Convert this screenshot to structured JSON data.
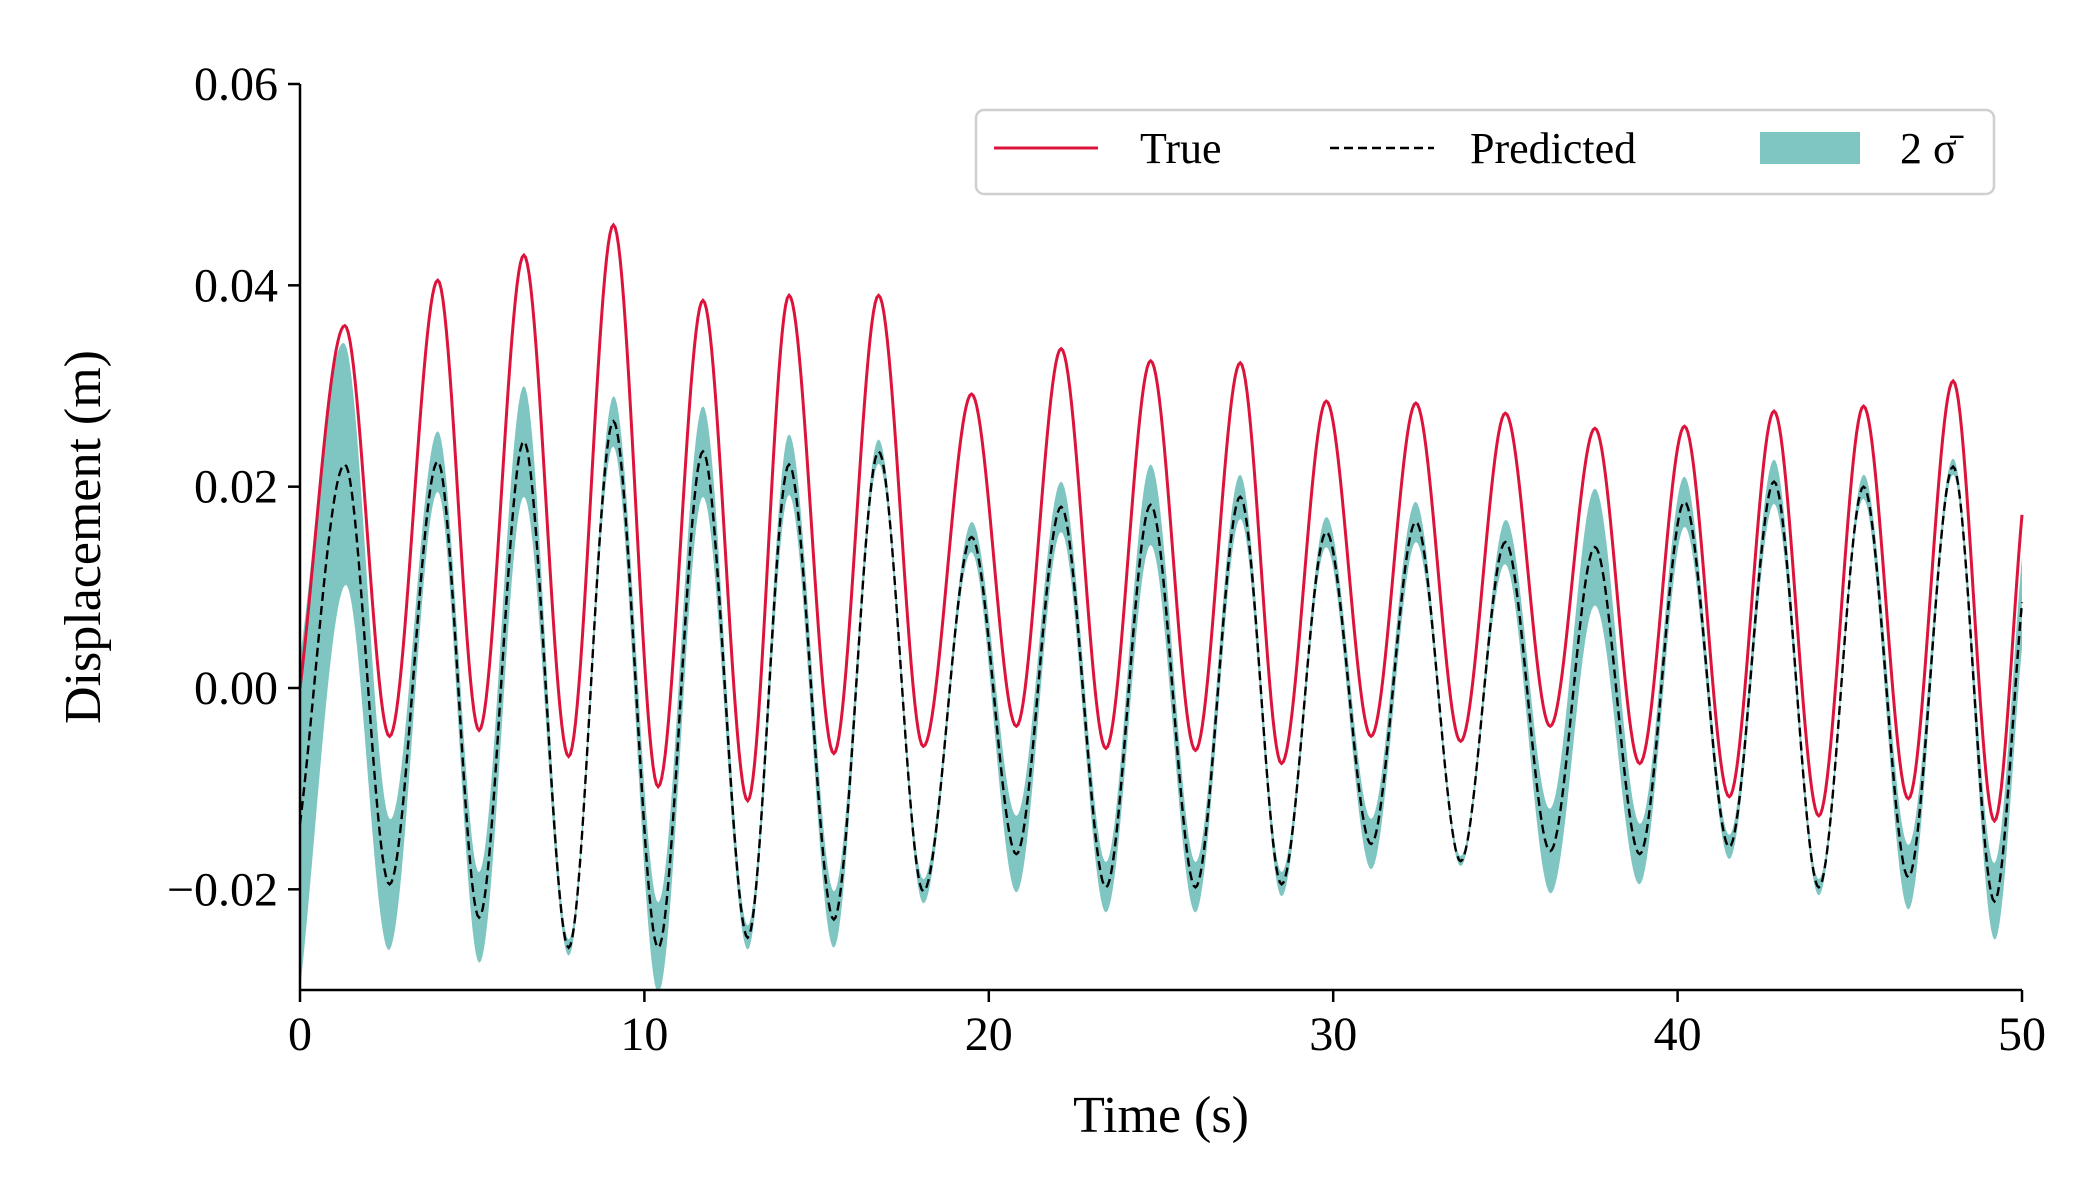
{
  "chart_data": {
    "type": "line",
    "title": "",
    "xlabel": "Time (s)",
    "ylabel": "Displacement (m)",
    "xlim": [
      0,
      50
    ],
    "ylim": [
      -0.03,
      0.06
    ],
    "xticks": [
      0,
      10,
      20,
      30,
      40,
      50
    ],
    "xtick_labels": [
      "0",
      "10",
      "20",
      "30",
      "40",
      "50"
    ],
    "yticks": [
      -0.02,
      0.0,
      0.02,
      0.04,
      0.06
    ],
    "ytick_labels": [
      "−0.02",
      "0.00",
      "0.02",
      "0.04",
      "0.06"
    ],
    "grid": false,
    "legend_position": "top-right",
    "colors": {
      "true": "#dc143c",
      "predicted": "#000000",
      "band": "#7fc6c2"
    },
    "series": [
      {
        "name": "True",
        "legend_label": "True",
        "style": "solid",
        "x": [
          0,
          1.3,
          2.6,
          4.0,
          5.2,
          6.5,
          7.8,
          9.1,
          10.4,
          11.7,
          13.0,
          14.2,
          15.5,
          16.8,
          18.1,
          19.5,
          20.8,
          22.1,
          23.4,
          24.7,
          26.0,
          27.3,
          28.5,
          29.8,
          31.1,
          32.4,
          33.7,
          35.0,
          36.3,
          37.6,
          38.9,
          40.2,
          41.5,
          42.8,
          44.1,
          45.4,
          46.7,
          48.0,
          49.2,
          50.0
        ],
        "y": [
          0.0,
          0.036,
          -0.0048,
          0.0405,
          -0.0042,
          0.043,
          -0.0068,
          0.046,
          -0.0098,
          0.0385,
          -0.0112,
          0.039,
          -0.0065,
          0.039,
          -0.0058,
          0.0292,
          -0.0038,
          0.0337,
          -0.006,
          0.0325,
          -0.0062,
          0.0323,
          -0.0075,
          0.0285,
          -0.0048,
          0.0283,
          -0.0053,
          0.0273,
          -0.0038,
          0.0258,
          -0.0075,
          0.026,
          -0.0108,
          0.0275,
          -0.0127,
          0.028,
          -0.011,
          0.0305,
          -0.0132,
          0.0172
        ]
      },
      {
        "name": "Predicted",
        "legend_label": "Predicted",
        "style": "dashed",
        "x": [
          0,
          1.3,
          2.6,
          4.0,
          5.2,
          6.5,
          7.8,
          9.1,
          10.4,
          11.7,
          13.0,
          14.2,
          15.5,
          16.8,
          18.1,
          19.5,
          20.8,
          22.1,
          23.4,
          24.7,
          26.0,
          27.3,
          28.5,
          29.8,
          31.1,
          32.4,
          33.7,
          35.0,
          36.3,
          37.6,
          38.9,
          40.2,
          41.5,
          42.8,
          44.1,
          45.4,
          46.7,
          48.0,
          49.2,
          50.0
        ],
        "y": [
          -0.0135,
          0.0222,
          -0.0195,
          0.0225,
          -0.0228,
          0.0245,
          -0.0258,
          0.0265,
          -0.0258,
          0.0235,
          -0.0248,
          0.0222,
          -0.023,
          0.0235,
          -0.0202,
          0.015,
          -0.0165,
          0.018,
          -0.0198,
          0.0182,
          -0.0198,
          0.019,
          -0.0195,
          0.0155,
          -0.0155,
          0.0165,
          -0.0172,
          0.0145,
          -0.0162,
          0.014,
          -0.0165,
          0.0185,
          -0.0158,
          0.0205,
          -0.0198,
          0.02,
          -0.0188,
          0.022,
          -0.0212,
          0.0085
        ]
      }
    ],
    "band": {
      "name": "2 sigma bar",
      "legend_label": "2 σ̄",
      "half_width": [
        0.0165,
        0.012,
        0.0065,
        0.003,
        0.0045,
        0.0055,
        0.0008,
        0.0025,
        0.0045,
        0.0045,
        0.0012,
        0.003,
        0.0028,
        0.0012,
        0.0012,
        0.0015,
        0.0038,
        0.0025,
        0.0025,
        0.004,
        0.0025,
        0.0022,
        0.0012,
        0.0015,
        0.0025,
        0.002,
        0.0005,
        0.0022,
        0.0042,
        0.0058,
        0.003,
        0.0025,
        0.0012,
        0.0022,
        0.0008,
        0.0012,
        0.0032,
        0.0008,
        0.0038,
        0.0045
      ]
    }
  }
}
